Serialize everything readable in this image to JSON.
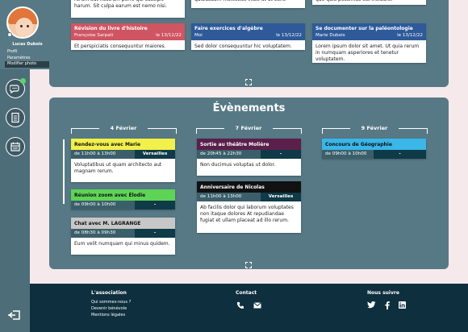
{
  "sidebar": {
    "username": "Lucas Dubois",
    "menu": [
      "Profil",
      "Paramètres",
      "Modifier photo"
    ]
  },
  "top_cards": [
    {
      "body": "rerum aut nostrum porro qui suscipit harum. Sit culpa earum est nemo nisi."
    },
    {
      "body": "quibusdam molestias vitae at ut sunt."
    },
    {
      "body": "quo quia possimus est incidunt."
    },
    {
      "title": "Révision du livre d'histoire",
      "author": "Françoise Sarpati",
      "date": "le 13/12/22",
      "color": "#d05562",
      "body": "Et perspiciatis consequuntur maiores."
    },
    {
      "title": "Faire exercices d'algèbre",
      "author": "Moi",
      "date": "le 13/12/22",
      "color": "#2e5a9a",
      "body": "Sed dolor consequuntur hic voluptatem."
    },
    {
      "title": "Se documenter sur la paléontologie",
      "author": "Marie Dubois",
      "date": "le 13/12/22",
      "color": "#2e5a9a",
      "body": "Lorem ipsum dolor sit amet. Ut quia rerum in numquam asperiores et tenetur voluptatem."
    }
  ],
  "events_title": "Évènements",
  "days": [
    "4 Février",
    "7 Février",
    "9 Février"
  ],
  "events": [
    {
      "title": "Rendez-vous avec Marie",
      "time": "de 11h00 à 13h00",
      "place": "Versailles",
      "body": "Voluptatibus ut quam architecto aut magnam rerum.",
      "color": "#f2f04a",
      "text_color": "#111111"
    },
    {
      "title": "Réunion zoom avec Élodie",
      "time": "de 09h00 à 10h00",
      "place": "-",
      "body": "",
      "color": "#5ed456",
      "text_color": "#111111"
    },
    {
      "title": "Chat avec M. LAGRANGE",
      "time": "de 08h30 à 09h30",
      "place": "-",
      "body": "Eum velit numquam qui minus quidem.",
      "color": "#c7c7c7",
      "text_color": "#111111"
    },
    {
      "title": "Sortie au théâtre Molière",
      "time": "de 20h45 à 22h30",
      "place": "-",
      "body": "Non ducimus voluptas ut dolor.",
      "color": "#5a1f4a",
      "text_color": "#ffffff"
    },
    {
      "title": "Anniversaire de Nicolas",
      "time": "de 11h00 à 13h00",
      "place": "Versailles",
      "body": "Ab facilis dolor qui laborum voluptates non itaque dolores At repudiandae fugiat et ullam placeat ad illo rerum.",
      "color": "#111111",
      "text_color": "#ffffff"
    },
    {
      "title": "Concours de Géographie",
      "time": "de 09h00 à 10h00",
      "place": "-",
      "body": "",
      "color": "#3ab6e8",
      "text_color": "#111111"
    }
  ],
  "footer": {
    "association_title": "L'association",
    "association_links": [
      "Qui sommes-nous ?",
      "Devenir bénévole",
      "Mentions légales"
    ],
    "contact_title": "Contact",
    "follow_title": "Nous suivre"
  }
}
